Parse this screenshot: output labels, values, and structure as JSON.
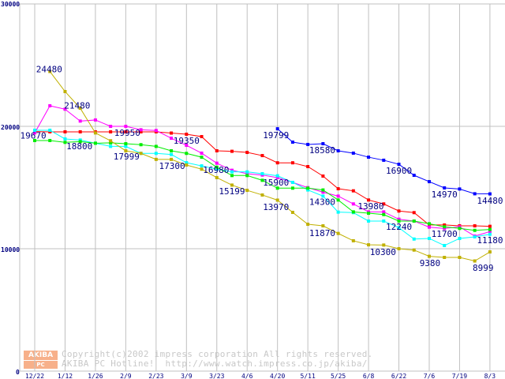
{
  "chart_data": {
    "type": "line",
    "title": "",
    "xlabel": "",
    "ylabel": "",
    "ylim": [
      0,
      30000
    ],
    "grid": true,
    "y_ticks": [
      "0",
      "10000",
      "20000",
      "30000"
    ],
    "y_tick_values": [
      0,
      10000,
      20000,
      30000
    ],
    "x_tick_labels": [
      "12/22",
      "1/12",
      "1/26",
      "2/9",
      "2/23",
      "3/9",
      "3/23",
      "4/6",
      "4/20",
      "5/11",
      "5/25",
      "6/8",
      "6/22",
      "7/6",
      "7/19",
      "8/3"
    ],
    "x_tick_indices": [
      0,
      2,
      4,
      6,
      8,
      10,
      12,
      14,
      16,
      18,
      20,
      22,
      24,
      26,
      28,
      30
    ],
    "x_count": 31,
    "series": [
      {
        "name": "red",
        "color": "#ff0000",
        "start": 0,
        "values": [
          19570,
          19550,
          19550,
          19550,
          19550,
          19550,
          19550,
          19550,
          19550,
          19450,
          19355,
          19160,
          18000,
          17960,
          17870,
          17610,
          17020,
          17020,
          16710,
          15935,
          14900,
          14730,
          13980,
          13660,
          13080,
          12950,
          11940,
          11940,
          11870,
          11870,
          11830
        ]
      },
      {
        "name": "magenta",
        "color": "#ff00ff",
        "start": 0,
        "values": [
          19460,
          21680,
          21400,
          20430,
          20520,
          20000,
          20000,
          19720,
          19660,
          19030,
          18450,
          17810,
          16990,
          16410,
          16130,
          16020,
          15810,
          15420,
          14990,
          14620,
          14300,
          13660,
          13010,
          13010,
          12410,
          12260,
          11760,
          11650,
          11790,
          11030,
          11400
        ]
      },
      {
        "name": "cyan",
        "color": "#00ffff",
        "start": 0,
        "values": [
          19680,
          19680,
          18970,
          18880,
          18620,
          18360,
          18360,
          17790,
          17790,
          17700,
          17030,
          16770,
          16500,
          16280,
          16280,
          16130,
          15960,
          15420,
          14800,
          14300,
          12990,
          12950,
          12260,
          12260,
          11720,
          10790,
          10840,
          10260,
          10840,
          10970,
          11180
        ]
      },
      {
        "name": "green",
        "color": "#00ee00",
        "start": 0,
        "values": [
          18840,
          18840,
          18690,
          18750,
          18620,
          18650,
          18580,
          18500,
          18360,
          18000,
          17790,
          17480,
          16660,
          15980,
          15980,
          15590,
          14950,
          14950,
          14950,
          14800,
          13980,
          13010,
          12900,
          12790,
          12260,
          12260,
          12040,
          11790,
          11660,
          11500,
          11570
        ]
      },
      {
        "name": "olive",
        "color": "#c0b000",
        "start": 1,
        "values": [
          24480,
          22840,
          21480,
          19460,
          18820,
          17999,
          17790,
          17300,
          17300,
          16840,
          16500,
          15810,
          15199,
          14770,
          14390,
          13970,
          12970,
          12000,
          11870,
          11250,
          10650,
          10320,
          10300,
          10000,
          9890,
          9380,
          9290,
          9290,
          8999,
          9740
        ]
      },
      {
        "name": "blue",
        "color": "#0000ff",
        "start": 16,
        "values": [
          19799,
          18710,
          18520,
          18580,
          18000,
          17810,
          17480,
          17230,
          16900,
          16000,
          15480,
          14970,
          14880,
          14490,
          14480
        ]
      }
    ],
    "annotations": [
      {
        "text": "24480",
        "x": 0.95,
        "y": 24600
      },
      {
        "text": "21480",
        "x": 2.8,
        "y": 21650
      },
      {
        "text": "19670",
        "x": -0.1,
        "y": 19200
      },
      {
        "text": "18800",
        "x": 2.95,
        "y": 18320
      },
      {
        "text": "19950",
        "x": 6.1,
        "y": 19420
      },
      {
        "text": "17999",
        "x": 6.05,
        "y": 17470
      },
      {
        "text": "17300",
        "x": 9.05,
        "y": 16700
      },
      {
        "text": "19350",
        "x": 10.0,
        "y": 18770
      },
      {
        "text": "16980",
        "x": 11.95,
        "y": 16390
      },
      {
        "text": "15199",
        "x": 13.0,
        "y": 14650
      },
      {
        "text": "19799",
        "x": 15.9,
        "y": 19230
      },
      {
        "text": "18580",
        "x": 18.95,
        "y": 18000
      },
      {
        "text": "15900",
        "x": 15.9,
        "y": 15350
      },
      {
        "text": "13970",
        "x": 15.9,
        "y": 13350
      },
      {
        "text": "14300",
        "x": 18.95,
        "y": 13770
      },
      {
        "text": "11870",
        "x": 18.95,
        "y": 11230
      },
      {
        "text": "16900",
        "x": 24.0,
        "y": 16320
      },
      {
        "text": "13980",
        "x": 22.15,
        "y": 13420
      },
      {
        "text": "12240",
        "x": 24.0,
        "y": 11740
      },
      {
        "text": "10300",
        "x": 22.95,
        "y": 9680
      },
      {
        "text": "14970",
        "x": 27.0,
        "y": 14390
      },
      {
        "text": "11700",
        "x": 27.0,
        "y": 11160
      },
      {
        "text": "9380",
        "x": 26.05,
        "y": 8770
      },
      {
        "text": "8999",
        "x": 29.55,
        "y": 8390
      },
      {
        "text": "14480",
        "x": 30.0,
        "y": 13870
      },
      {
        "text": "11180",
        "x": 30.0,
        "y": 10650
      }
    ]
  },
  "watermark": {
    "logo_top": "AKIBA",
    "logo_bottom": "PC Hotline!",
    "line1": "Copyright(c)2002 impress corporation All rights reserved.",
    "line2": "AKIBA PC Hotline!  http://www.watch.impress.co.jp/akiba/"
  }
}
